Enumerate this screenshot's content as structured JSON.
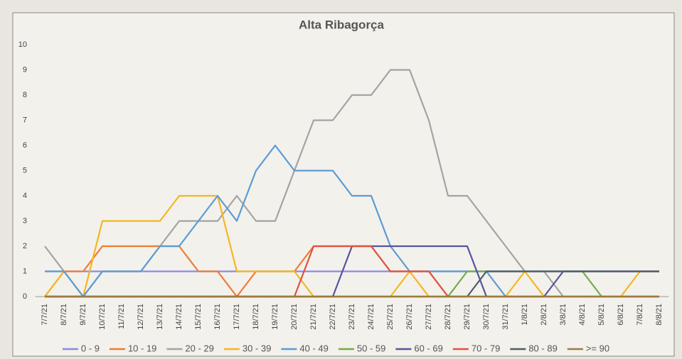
{
  "chart_data": {
    "type": "line",
    "title": "Alta Ribagorça",
    "categories": [
      "7/7/21",
      "8/7/21",
      "9/7/21",
      "10/7/21",
      "11/7/21",
      "12/7/21",
      "13/7/21",
      "14/7/21",
      "15/7/21",
      "16/7/21",
      "17/7/21",
      "18/7/21",
      "19/7/21",
      "20/7/21",
      "21/7/21",
      "22/7/21",
      "23/7/21",
      "24/7/21",
      "25/7/21",
      "26/7/21",
      "27/7/21",
      "28/7/21",
      "29/7/21",
      "30/7/21",
      "31/7/21",
      "1/8/21",
      "2/8/21",
      "3/8/21",
      "4/8/21",
      "5/8/21",
      "6/8/21",
      "7/8/21",
      "8/8/21"
    ],
    "series": [
      {
        "name": "0 - 9",
        "color": "#8a8ae0",
        "values": [
          1,
          1,
          1,
          1,
          1,
          1,
          1,
          1,
          1,
          1,
          1,
          1,
          1,
          1,
          1,
          1,
          1,
          1,
          1,
          1,
          1,
          1,
          1,
          1,
          1,
          1,
          1,
          1,
          1,
          1,
          1,
          1,
          1
        ]
      },
      {
        "name": "10 - 19",
        "color": "#ef7b32",
        "values": [
          0,
          1,
          1,
          2,
          2,
          2,
          2,
          2,
          1,
          1,
          0,
          1,
          1,
          1,
          2,
          2,
          2,
          2,
          1,
          1,
          1,
          0,
          0,
          0,
          0,
          0,
          0,
          0,
          0,
          0,
          0,
          0,
          0
        ]
      },
      {
        "name": "20 - 29",
        "color": "#a3a3a3",
        "values": [
          2,
          1,
          0,
          1,
          1,
          1,
          2,
          3,
          3,
          3,
          4,
          3,
          3,
          5,
          7,
          7,
          8,
          8,
          9,
          9,
          7,
          4,
          4,
          3,
          2,
          1,
          1,
          0,
          0,
          0,
          0,
          0,
          0
        ]
      },
      {
        "name": "30 - 39",
        "color": "#f2b722",
        "values": [
          0,
          1,
          0,
          3,
          3,
          3,
          3,
          4,
          4,
          4,
          1,
          1,
          1,
          1,
          0,
          0,
          0,
          0,
          0,
          1,
          0,
          0,
          0,
          0,
          0,
          1,
          0,
          0,
          0,
          0,
          0,
          1,
          1
        ]
      },
      {
        "name": "40 - 49",
        "color": "#5b9bd5",
        "values": [
          1,
          1,
          0,
          1,
          1,
          1,
          2,
          2,
          3,
          4,
          3,
          5,
          6,
          5,
          5,
          5,
          4,
          4,
          2,
          1,
          1,
          1,
          1,
          1,
          0,
          0,
          0,
          0,
          0,
          0,
          0,
          0,
          0
        ]
      },
      {
        "name": "50 - 59",
        "color": "#70ad47",
        "values": [
          0,
          0,
          0,
          0,
          0,
          0,
          0,
          0,
          0,
          0,
          0,
          0,
          0,
          0,
          0,
          0,
          0,
          0,
          0,
          0,
          0,
          0,
          1,
          1,
          1,
          1,
          1,
          1,
          1,
          0,
          0,
          0,
          0
        ]
      },
      {
        "name": "60 - 69",
        "color": "#55559e",
        "values": [
          0,
          0,
          0,
          0,
          0,
          0,
          0,
          0,
          0,
          0,
          0,
          0,
          0,
          0,
          0,
          0,
          2,
          2,
          2,
          2,
          2,
          2,
          2,
          0,
          0,
          0,
          0,
          1,
          1,
          1,
          1,
          1,
          1
        ]
      },
      {
        "name": "70 - 79",
        "color": "#e0523f",
        "values": [
          0,
          0,
          0,
          0,
          0,
          0,
          0,
          0,
          0,
          0,
          0,
          0,
          0,
          0,
          2,
          2,
          2,
          2,
          1,
          1,
          1,
          0,
          0,
          0,
          0,
          0,
          0,
          0,
          0,
          0,
          0,
          0,
          0
        ]
      },
      {
        "name": "80 - 89",
        "color": "#4f5a6a",
        "values": [
          0,
          0,
          0,
          0,
          0,
          0,
          0,
          0,
          0,
          0,
          0,
          0,
          0,
          0,
          0,
          0,
          0,
          0,
          0,
          0,
          0,
          0,
          0,
          1,
          1,
          1,
          1,
          1,
          1,
          1,
          1,
          1,
          1
        ]
      },
      {
        "name": ">= 90",
        "color": "#9c7b40",
        "values": [
          0,
          0,
          0,
          0,
          0,
          0,
          0,
          0,
          0,
          0,
          0,
          0,
          0,
          0,
          0,
          0,
          0,
          0,
          0,
          0,
          0,
          0,
          0,
          0,
          0,
          0,
          0,
          0,
          0,
          0,
          0,
          0,
          0
        ]
      }
    ],
    "ylim": [
      0,
      10
    ],
    "yticks": [
      0,
      1,
      2,
      3,
      4,
      5,
      6,
      7,
      8,
      9,
      10
    ],
    "grid": false,
    "legend": "bottom"
  }
}
